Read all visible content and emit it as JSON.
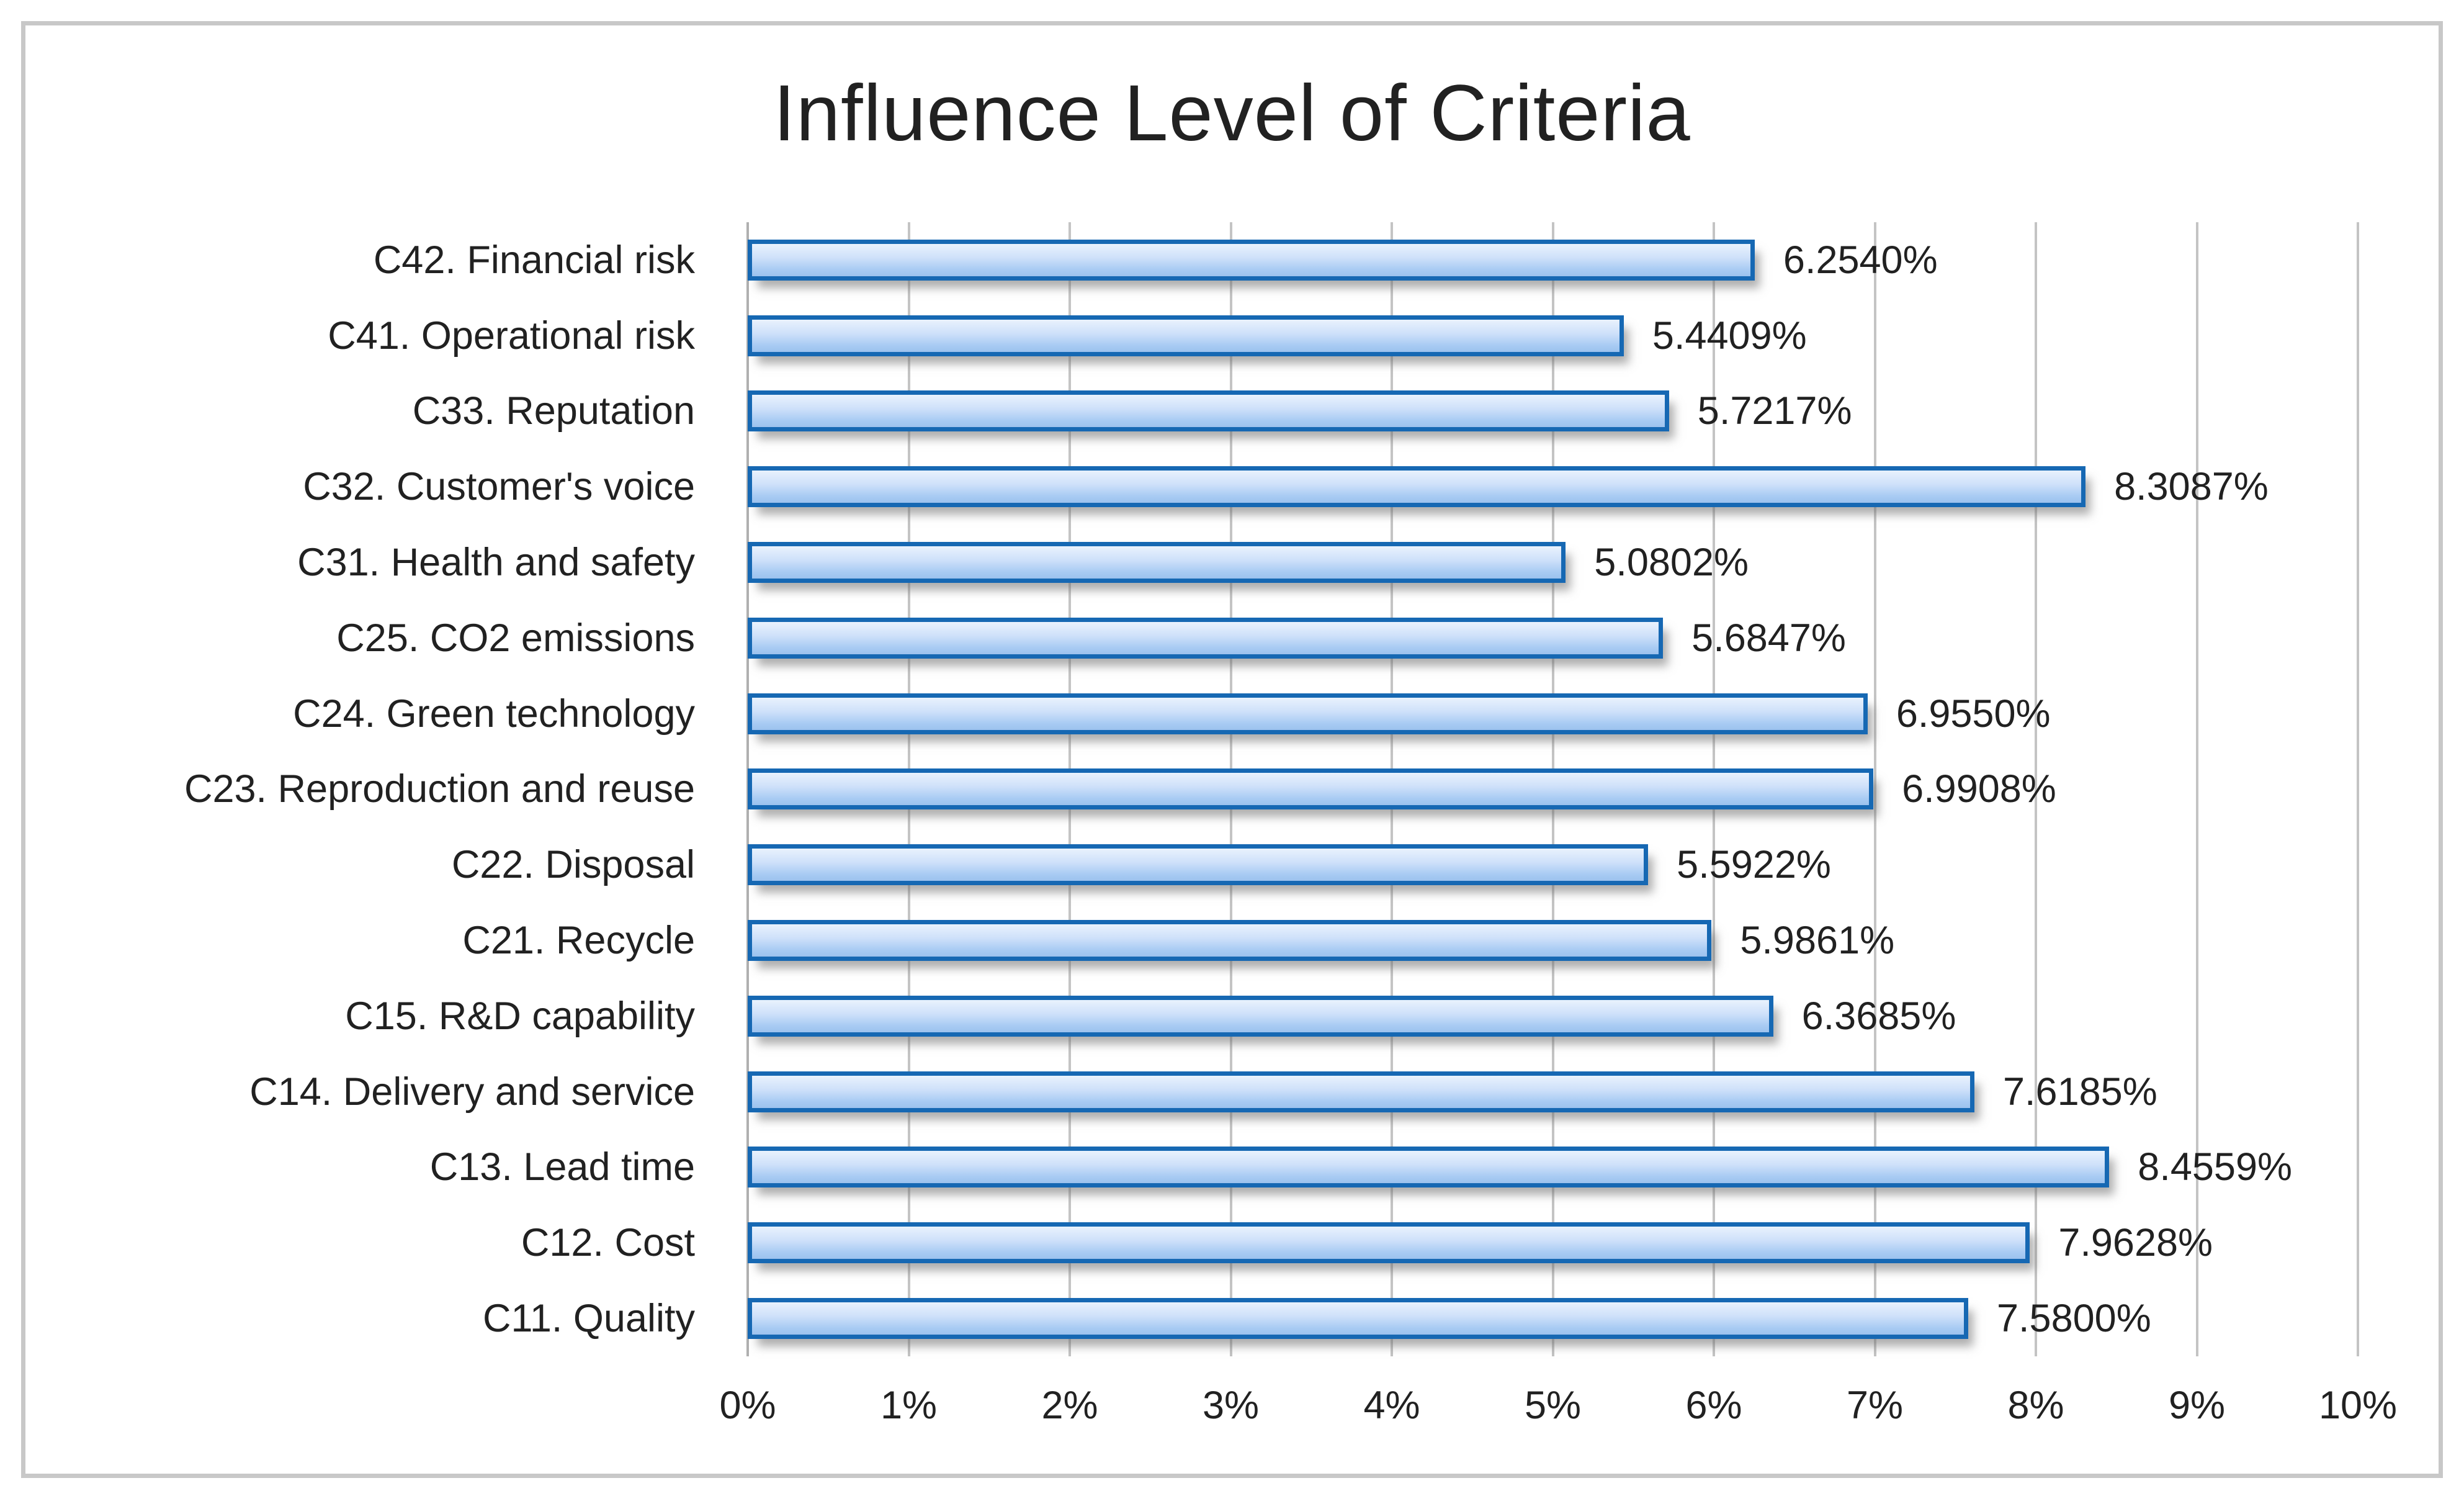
{
  "chart_data": {
    "type": "bar",
    "orientation": "horizontal",
    "title": "Influence Level of Criteria",
    "categories": [
      "C42. Financial risk",
      "C41. Operational risk",
      "C33. Reputation",
      "C32. Customer's voice",
      "C31. Health and safety",
      "C25. CO2 emissions",
      "C24. Green technology",
      "C23. Reproduction and reuse",
      "C22. Disposal",
      "C21. Recycle",
      "C15. R&D capability",
      "C14. Delivery and service",
      "C13. Lead time",
      "C12. Cost",
      "C11. Quality"
    ],
    "values": [
      6.254,
      5.4409,
      5.7217,
      8.3087,
      5.0802,
      5.6847,
      6.955,
      6.9908,
      5.5922,
      5.9861,
      6.3685,
      7.6185,
      8.4559,
      7.9628,
      7.58
    ],
    "value_labels": [
      "6.2540%",
      "5.4409%",
      "5.7217%",
      "8.3087%",
      "5.0802%",
      "5.6847%",
      "6.9550%",
      "6.9908%",
      "5.5922%",
      "5.9861%",
      "6.3685%",
      "7.6185%",
      "8.4559%",
      "7.9628%",
      "7.5800%"
    ],
    "xlabel": "",
    "ylabel": "",
    "xlim": [
      0,
      10
    ],
    "x_ticks": [
      "0%",
      "1%",
      "2%",
      "3%",
      "4%",
      "5%",
      "6%",
      "7%",
      "8%",
      "9%",
      "10%"
    ],
    "grid": "vertical",
    "legend": "none",
    "data_labels": "outside-end"
  },
  "colors": {
    "background": "#ffffff",
    "frame_border": "#c8c8c8",
    "text": "#212121",
    "gridline": "#c4c4c4",
    "axis_line": "#b0b0b0",
    "bar_border": "#1668b3",
    "bar_fill_top": "#e9f2fd",
    "bar_fill_mid": "#cfe1fa",
    "bar_fill_low": "#a8cbf3",
    "bar_fill_bottom": "#9cc2ee"
  }
}
